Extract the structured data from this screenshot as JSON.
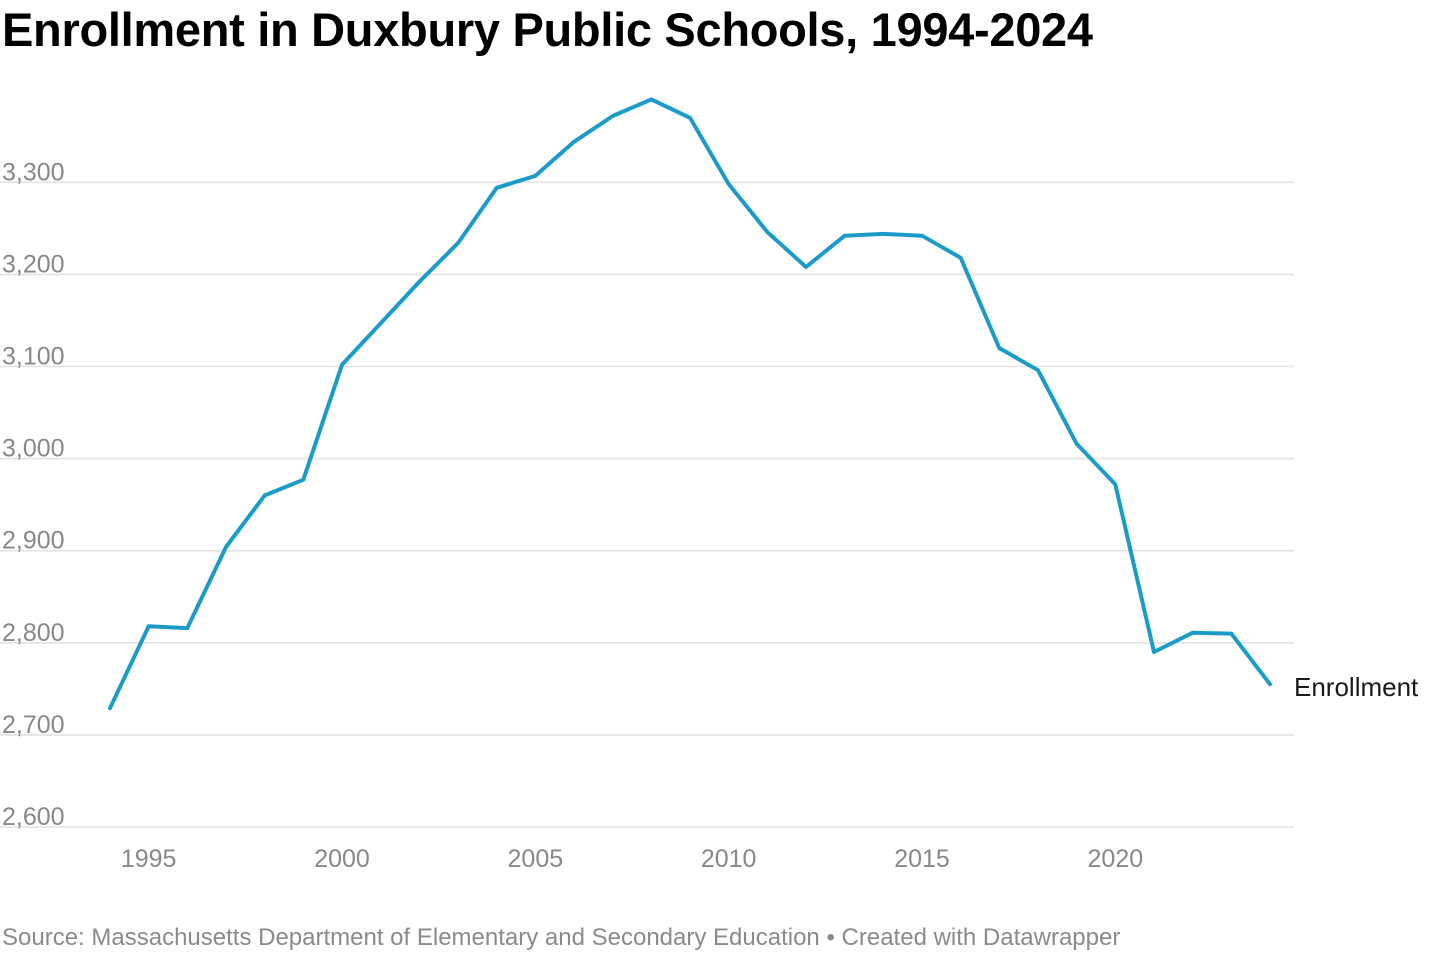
{
  "title": "Enrollment in Duxbury Public Schools, 1994-2024",
  "footer": {
    "source": "Source: Massachusetts Department of Elementary and Secondary Education",
    "separator": "•",
    "credit": "Created with Datawrapper"
  },
  "colors": {
    "line": "#1b9cc8",
    "grid": "#e2e2e2",
    "tick_text": "#888888"
  },
  "chart_data": {
    "type": "line",
    "title": "Enrollment in Duxbury Public Schools, 1994-2024",
    "xlabel": "",
    "ylabel": "",
    "x_ticks": [
      1995,
      2000,
      2005,
      2010,
      2015,
      2020
    ],
    "y_ticks": [
      2600,
      2700,
      2800,
      2900,
      3000,
      3100,
      3200,
      3300
    ],
    "ylim": [
      2600,
      3390
    ],
    "xlim": [
      1994,
      2024
    ],
    "grid": true,
    "legend": "direct label at line end",
    "series": [
      {
        "name": "Enrollment",
        "x": [
          1994,
          1995,
          1996,
          1997,
          1998,
          1999,
          2000,
          2001,
          2002,
          2003,
          2004,
          2005,
          2006,
          2007,
          2008,
          2009,
          2010,
          2011,
          2012,
          2013,
          2014,
          2015,
          2016,
          2017,
          2018,
          2019,
          2020,
          2021,
          2022,
          2023,
          2024
        ],
        "values": [
          2729,
          2818,
          2816,
          2904,
          2960,
          2977,
          3102,
          3147,
          3192,
          3234,
          3294,
          3307,
          3344,
          3372,
          3390,
          3370,
          3298,
          3246,
          3208,
          3242,
          3244,
          3242,
          3218,
          3120,
          3096,
          3016,
          2972,
          2790,
          2811,
          2810,
          2755
        ]
      }
    ]
  }
}
